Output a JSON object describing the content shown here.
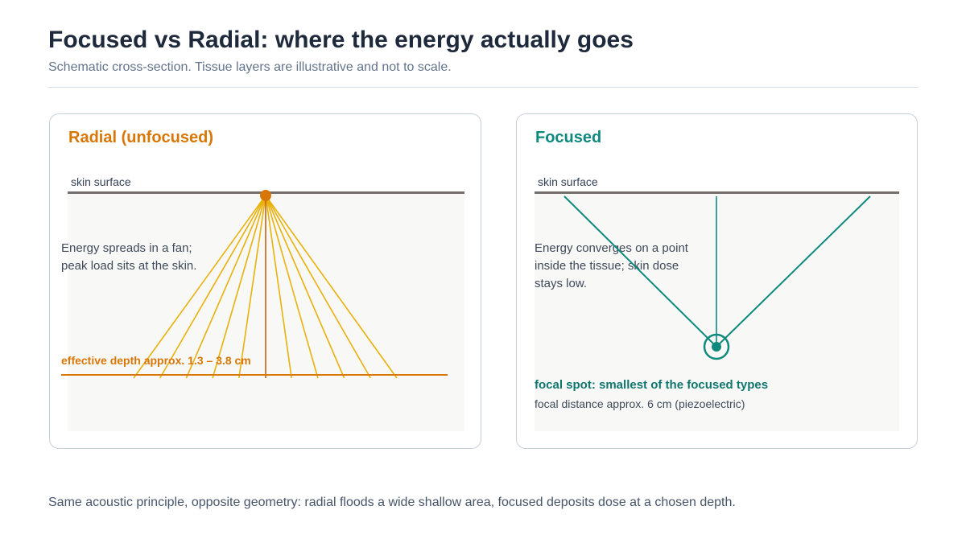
{
  "title": "Focused vs Radial: where the energy actually goes",
  "subtitle": "Schematic cross-section. Tissue layers are illustrative and not to scale.",
  "colors": {
    "radial_accent": "#d97706",
    "radial_ray": "#e8b10b",
    "focused_accent": "#0d8a7d",
    "skin_line": "#746f6c",
    "tissue_fill": "#f8f8f6"
  },
  "radial_panel": {
    "heading": "Radial (unfocused)",
    "skin_label": "skin surface",
    "note_lines": [
      "Energy spreads in a fan;",
      "peak load sits at the skin."
    ],
    "depth_label": "effective depth approx. 1.3 – 3.8 cm"
  },
  "focused_panel": {
    "heading": "Focused",
    "skin_label": "skin surface",
    "note_lines": [
      "Energy converges on a point",
      "inside the tissue; skin dose",
      "stays low."
    ],
    "focal_label": "focal spot: smallest of the focused types",
    "focal_sub": "focal distance approx. 6 cm (piezoelectric)"
  },
  "caption": "Same acoustic principle, opposite geometry: radial floods a wide shallow area, focused deposits dose at a chosen depth."
}
